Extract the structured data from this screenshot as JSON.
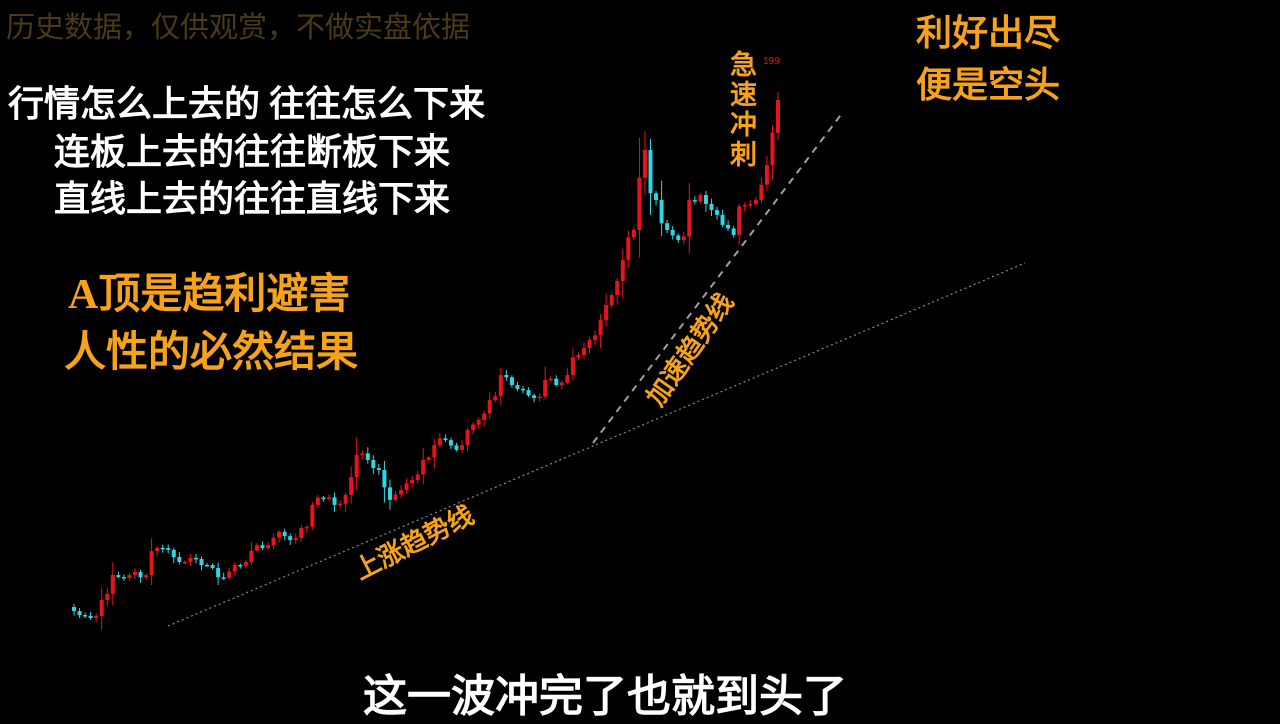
{
  "watermark": "历史数据，仅供观赏，不做实盘依据",
  "left_text": {
    "lines": [
      "行情怎么上去的 往往怎么下来",
      "连板上去的往往断板下来",
      "直线上去的往往直线下来"
    ],
    "highlight": [
      "A顶是趋利避害",
      "人性的必然结果"
    ]
  },
  "right_text": [
    "利好出尽",
    "便是空头"
  ],
  "subtitle": "这一波冲完了也就到头了",
  "chart_data": {
    "type": "candlestick",
    "title": "",
    "xlabel": "",
    "ylabel": "",
    "grid": false,
    "max_label": "199",
    "colors": {
      "up": "#e8141c",
      "down": "#2fd6e4",
      "trendline": "#9a9a9a",
      "annotation": "#f7a21b"
    },
    "annotations": {
      "uptrend_label": "上涨趋势线",
      "accel_label": "加速趋势线",
      "sprint_label": "急速冲刺"
    },
    "closes": [
      25,
      22.3,
      21.3,
      27.4,
      35.8,
      34.8,
      36.8,
      35.8,
      45.0,
      44.3,
      40.2,
      41.6,
      39.2,
      38.2,
      34.8,
      39.2,
      40.2,
      45.9,
      45.9,
      50.4,
      47.6,
      51.7,
      59.5,
      61.8,
      59.5,
      62.9,
      76.4,
      74.7,
      71.3,
      61.2,
      64.5,
      67.9,
      74.7,
      79.7,
      81.4,
      78.1,
      84.8,
      88.2,
      94.9,
      103.4,
      100.0,
      98.3,
      95.6,
      101.7,
      100.0,
      103.4,
      110.1,
      115.2,
      121.9,
      130.4,
      142.2,
      152.4,
      179.4,
      162.5,
      152.4,
      149.0,
      162.5,
      164.2,
      159.1,
      154.1,
      150.7,
      160.8,
      162.5,
      174.3,
      196.3
    ],
    "high": 199
  }
}
